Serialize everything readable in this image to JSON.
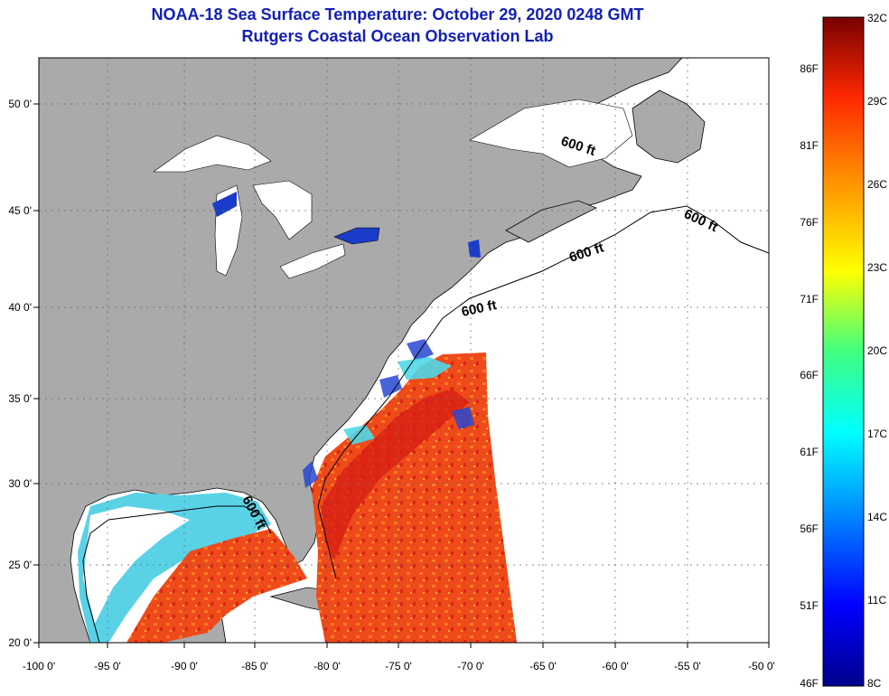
{
  "title": "NOAA-18 Sea Surface Temperature:  October 29, 2020 0248 GMT",
  "subtitle": "Rutgers Coastal Ocean Observation Lab",
  "x_ticks": [
    "-100 0'",
    "-95 0'",
    "-90 0'",
    "-85 0'",
    "-80 0'",
    "-75 0'",
    "-70 0'",
    "-65 0'",
    "-60 0'",
    "-55 0'",
    "-50 0'"
  ],
  "y_ticks": [
    "20 0'",
    "25 0'",
    "30 0'",
    "35 0'",
    "40 0'",
    "45 0'",
    "50 0'"
  ],
  "colorbar": {
    "celsius": [
      "32C",
      "29C",
      "26C",
      "23C",
      "20C",
      "17C",
      "14C",
      "11C",
      "8C"
    ],
    "fahrenheit": [
      "86F",
      "81F",
      "76F",
      "71F",
      "66F",
      "61F",
      "56F",
      "51F",
      "46F"
    ]
  },
  "contour_labels": [
    "600 ft",
    "600 ft",
    "600 ft",
    "600 ft",
    "600 ft"
  ],
  "colors": {
    "land": "#aaaaaa",
    "no_data": "#ffffff",
    "title": "#1420b4",
    "warm": "#e63c14",
    "cold": "#0a1e96"
  }
}
